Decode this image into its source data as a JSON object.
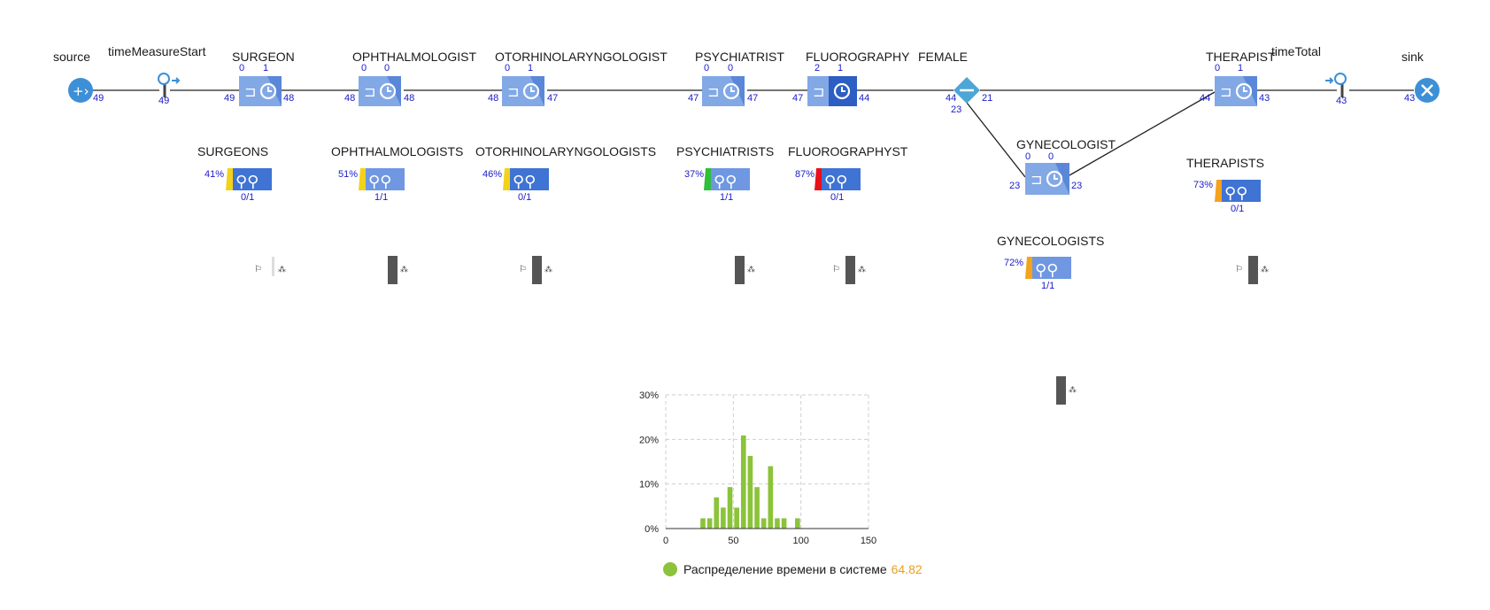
{
  "blocks": {
    "source": {
      "label": "source",
      "out": "49"
    },
    "tms": {
      "label": "timeMeasureStart",
      "count": "49"
    },
    "surgeon": {
      "label": "SURGEON",
      "q": "0",
      "s": "1",
      "in": "49",
      "out": "48"
    },
    "ophth": {
      "label": "OPHTHALMOLOGIST",
      "q": "0",
      "s": "0",
      "in": "48",
      "out": "48"
    },
    "otorh": {
      "label": "OTORHINOLARYNGOLOGIST",
      "q": "0",
      "s": "1",
      "in": "48",
      "out": "47"
    },
    "psych": {
      "label": "PSYCHIATRIST",
      "q": "0",
      "s": "0",
      "in": "47",
      "out": "47"
    },
    "fluoro": {
      "label": "FLUOROGRAPHY",
      "q": "2",
      "s": "1",
      "in": "47",
      "out": "44"
    },
    "female": {
      "label": "FEMALE",
      "in": "44",
      "out_true": "21",
      "out_false": "23"
    },
    "gyneco": {
      "label": "GYNECOLOGIST",
      "q": "0",
      "s": "0",
      "in": "23",
      "out": "23"
    },
    "therapist": {
      "label": "THERAPIST",
      "q": "0",
      "s": "1",
      "in": "44",
      "out": "43"
    },
    "ttotal": {
      "label": "timeTotal",
      "count": "43"
    },
    "sink": {
      "label": "sink",
      "in": "43"
    }
  },
  "pools": {
    "surgeons": {
      "label": "SURGEONS",
      "util": "41%",
      "use": "0/1",
      "color": "#f2d21b"
    },
    "ophths": {
      "label": "OPHTHALMOLOGISTS",
      "util": "51%",
      "use": "1/1",
      "color": "#f2d21b"
    },
    "otorhs": {
      "label": "OTORHINOLARYNGOLOGISTS",
      "util": "46%",
      "use": "0/1",
      "color": "#f2d21b"
    },
    "psychs": {
      "label": "PSYCHIATRISTS",
      "util": "37%",
      "use": "1/1",
      "color": "#2fbf3a"
    },
    "fluoros": {
      "label": "FLUOROGRAPHYST",
      "util": "87%",
      "use": "0/1",
      "color": "#e8101a"
    },
    "gynecos": {
      "label": "GYNECOLOGISTS",
      "util": "72%",
      "use": "1/1",
      "color": "#f5a21c"
    },
    "therapists": {
      "label": "THERAPISTS",
      "util": "73%",
      "use": "0/1",
      "color": "#f5a21c"
    }
  },
  "legend": {
    "label": "Распределение времени в системе",
    "value": "64.82",
    "color": "#8bc33a"
  },
  "chart_data": {
    "type": "bar",
    "title": "",
    "xlabel": "",
    "ylabel": "",
    "xlim": [
      0,
      150
    ],
    "ylim": [
      0,
      30
    ],
    "x_ticks": [
      "0",
      "50",
      "100",
      "150"
    ],
    "y_ticks": [
      "0%",
      "10%",
      "20%",
      "30%"
    ],
    "grid": true,
    "bin_width": 5,
    "series": [
      {
        "name": "Распределение времени в системе",
        "color": "#8bc33a",
        "x": [
          27.5,
          32.5,
          37.5,
          42.5,
          47.5,
          52.5,
          57.5,
          62.5,
          67.5,
          72.5,
          77.5,
          82.5,
          87.5,
          92.5,
          97.5,
          102.5,
          107.5
        ],
        "values": [
          2.3,
          2.3,
          7.0,
          4.7,
          9.3,
          4.7,
          20.9,
          16.3,
          9.3,
          2.3,
          14.0,
          2.3,
          2.3,
          0,
          2.3,
          0,
          0
        ]
      }
    ]
  }
}
